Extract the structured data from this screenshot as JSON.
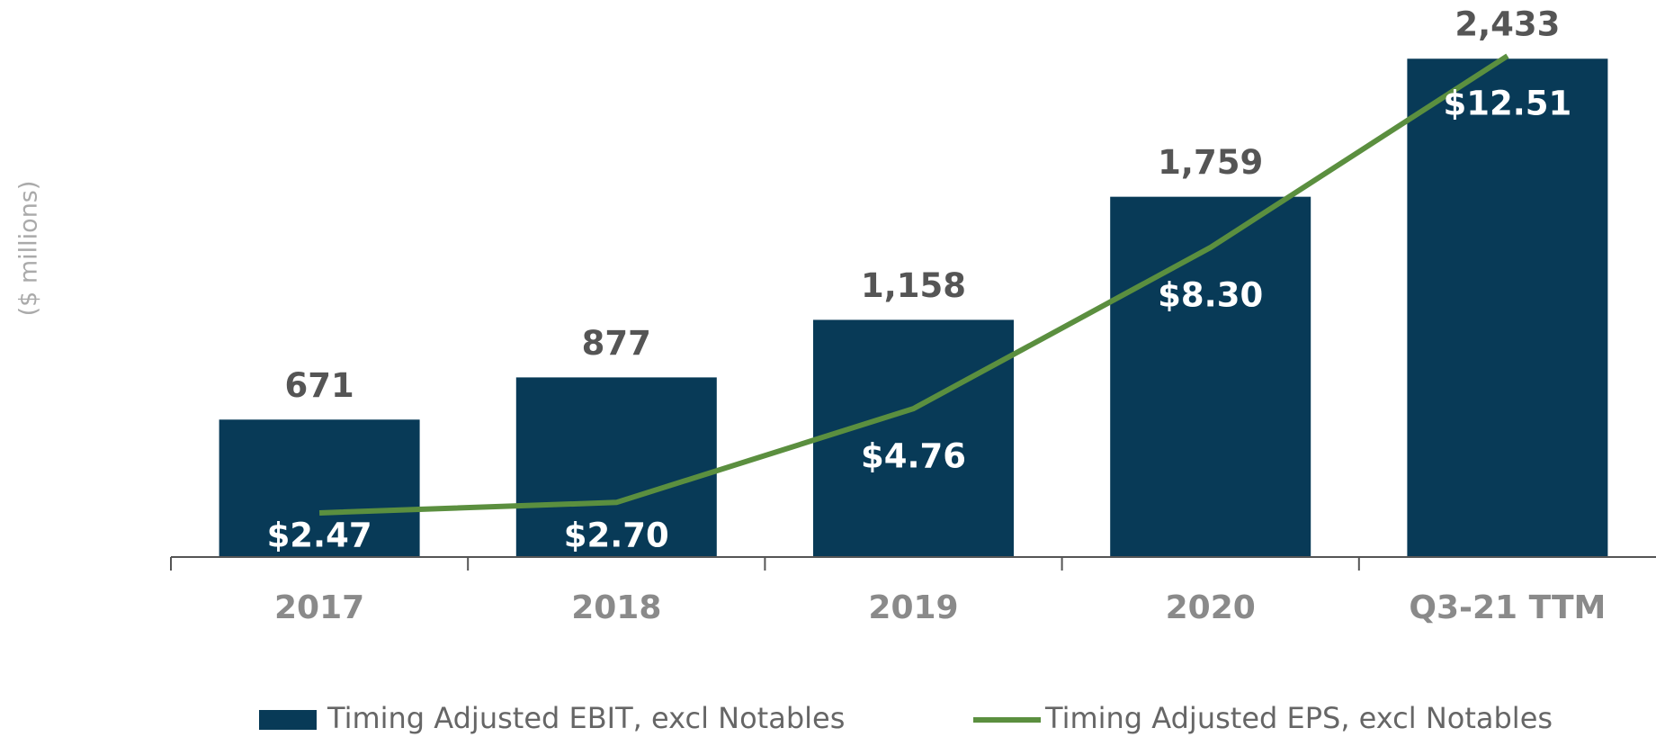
{
  "chart_data": {
    "type": "bar_line",
    "y_label": "($ millions)",
    "categories": [
      "2017",
      "2018",
      "2019",
      "2020",
      "Q3-21 TTM"
    ],
    "series": [
      {
        "name": "Timing Adjusted EBIT, excl Notables",
        "type": "bar",
        "color": "#083a57",
        "values": [
          671,
          877,
          1158,
          1759,
          2433
        ],
        "value_labels": [
          "671",
          "877",
          "1,158",
          "1,759",
          "2,433"
        ]
      },
      {
        "name": "Timing Adjusted EPS, excl Notables",
        "type": "line",
        "axis": "y2",
        "color": "#5b8f3f",
        "values": [
          2.47,
          2.7,
          4.76,
          8.3,
          12.51
        ],
        "value_labels": [
          "$2.47",
          "$2.70",
          "$4.76",
          "$8.30",
          "$12.51"
        ]
      }
    ],
    "ylim": [
      0,
      2500
    ],
    "y2lim": [
      1.5,
      12.75
    ],
    "grid": false,
    "legend": "bottom"
  }
}
